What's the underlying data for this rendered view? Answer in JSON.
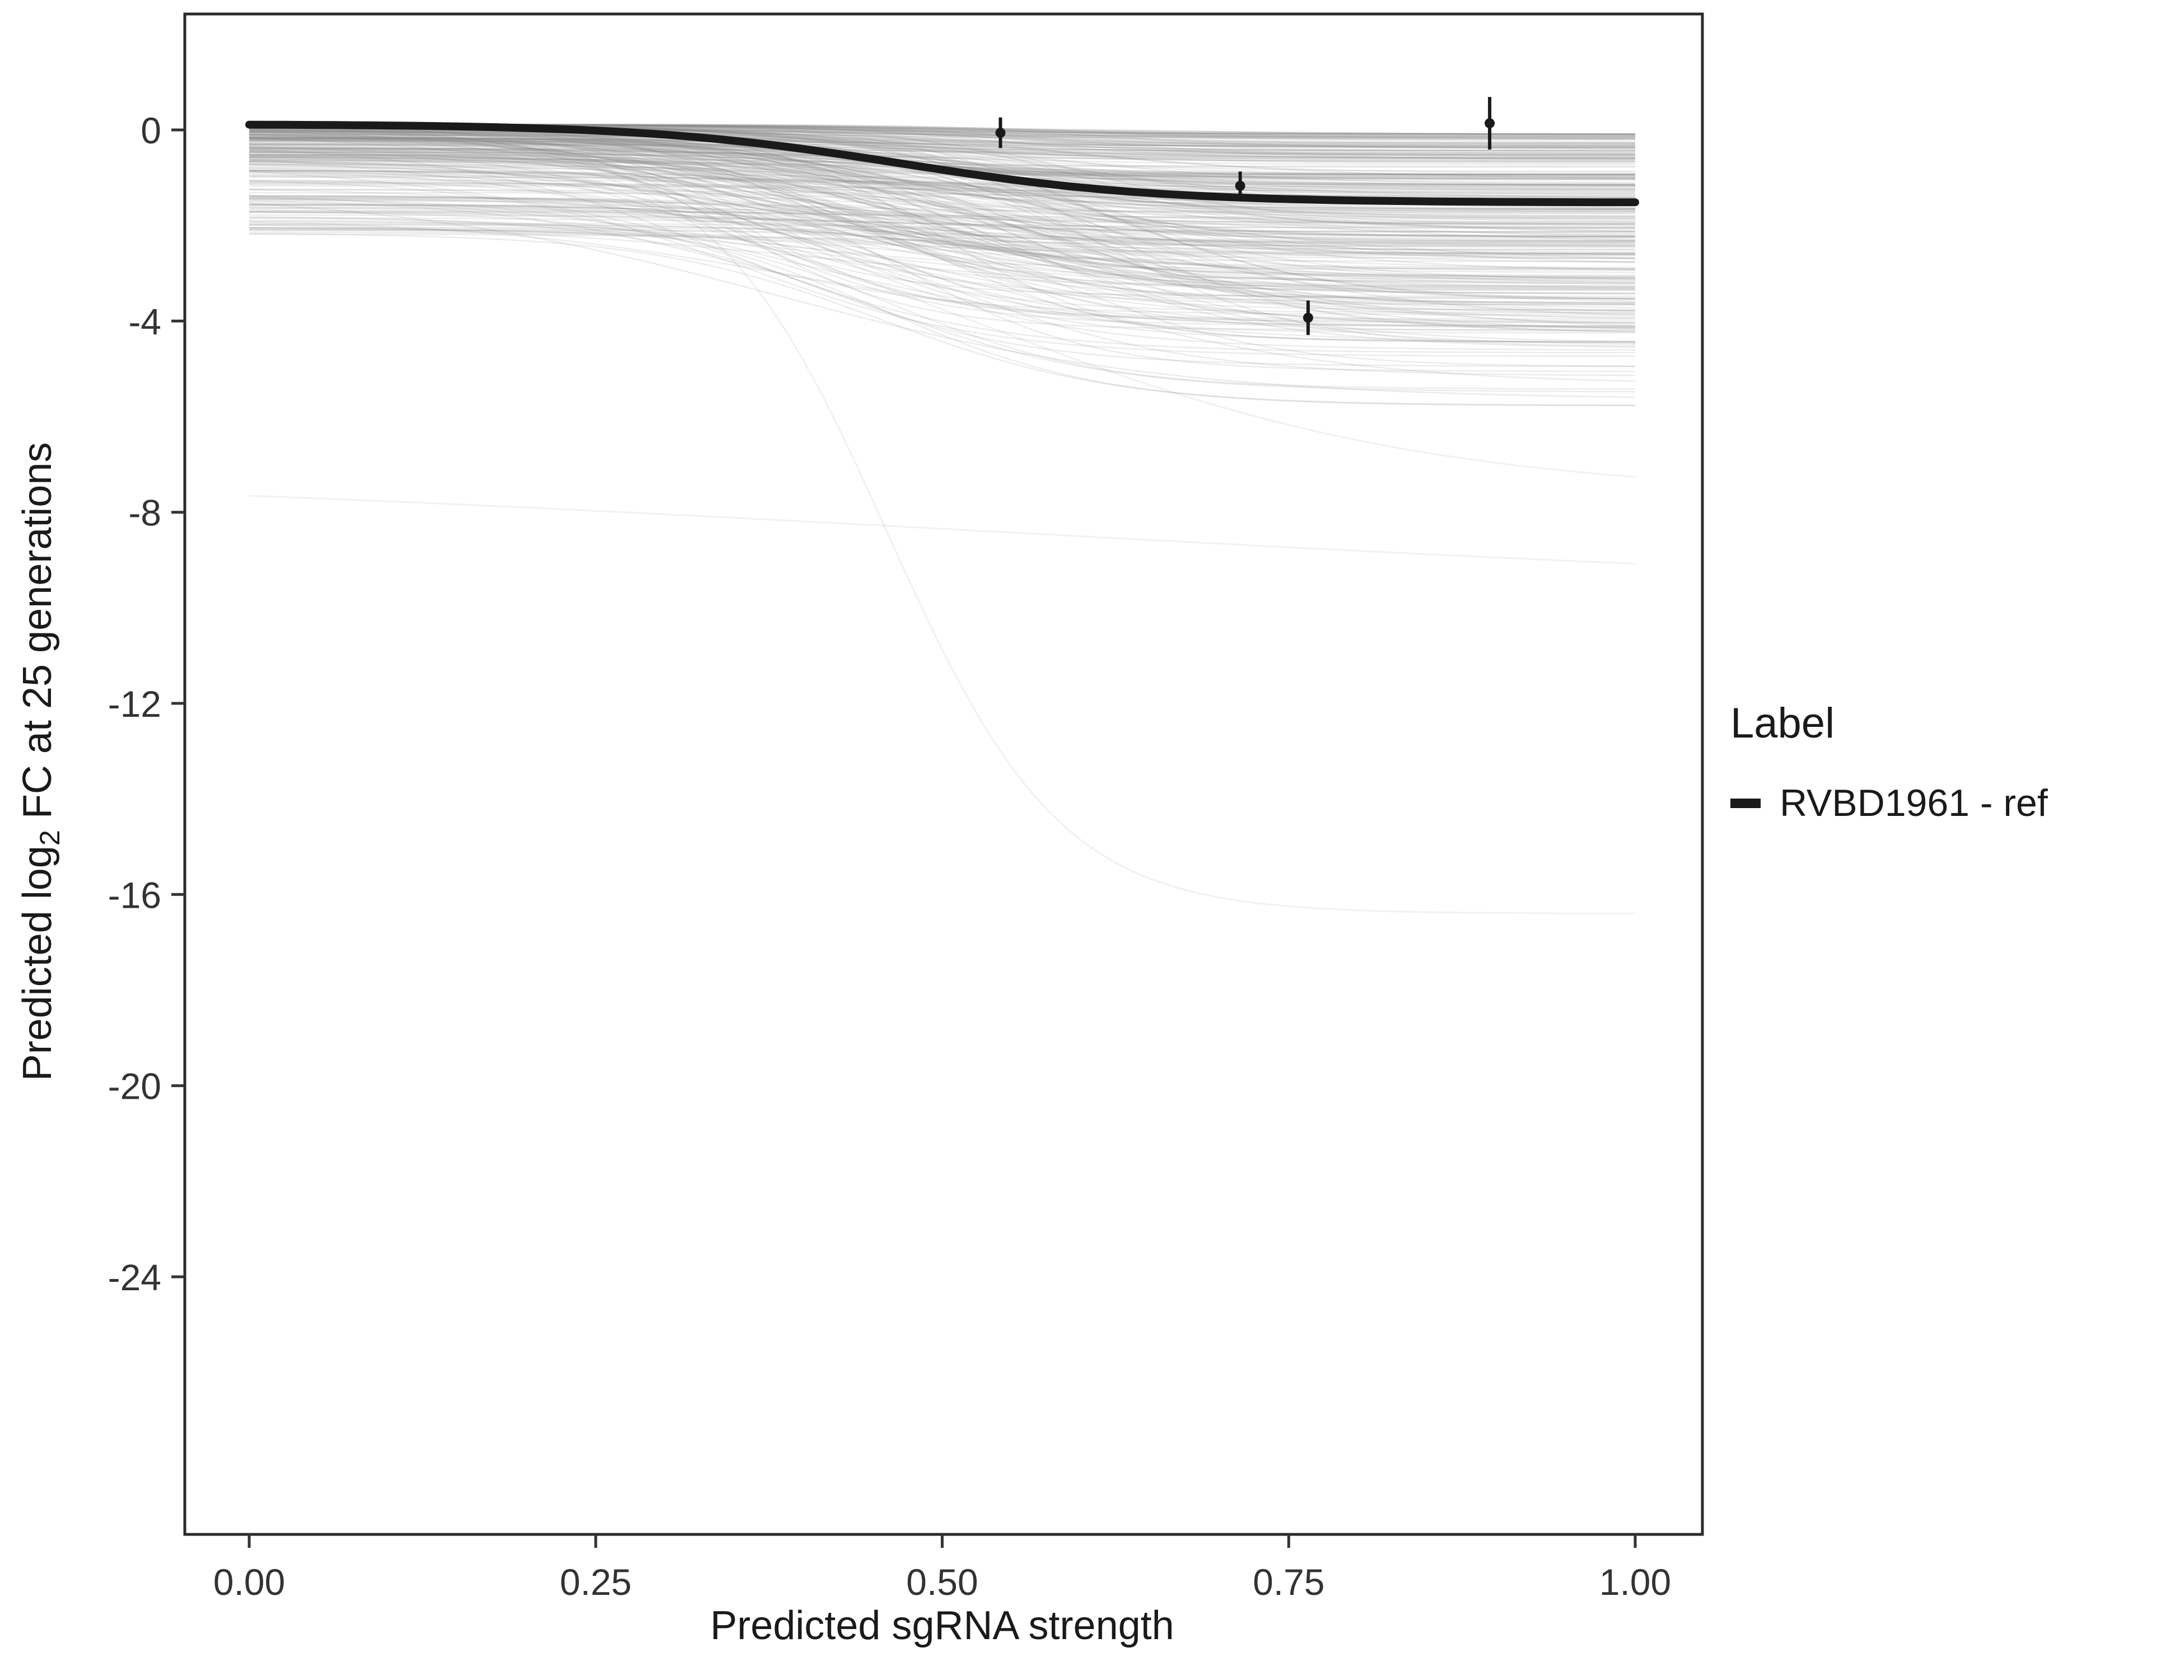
{
  "chart_data": {
    "type": "line",
    "title": "",
    "xlabel": "Predicted sgRNA strength",
    "ylabel_parts": {
      "prefix": "Predicted  log",
      "sub": "2",
      "suffix": " FC at 25 generations"
    },
    "xlim": [
      0,
      1
    ],
    "ylim": [
      -27.5,
      1.5
    ],
    "x_ticks": [
      0,
      0.25,
      0.5,
      0.75,
      1
    ],
    "x_tick_labels": [
      "0.00",
      "0.25",
      "0.50",
      "0.75",
      "1.00"
    ],
    "y_ticks": [
      0,
      -4,
      -8,
      -12,
      -16,
      -20,
      -24
    ],
    "y_tick_labels": [
      "0",
      "-4",
      "-8",
      "-12",
      "-16",
      "-20",
      "-24"
    ],
    "grid": false,
    "panel_border_color": "#2b2b2b",
    "ref_series": {
      "name": "RVBD1961 - ref",
      "color": "#1a1a1a",
      "sigmoid": {
        "y_start": 0.12,
        "y_end": -1.52,
        "midpoint": 0.47,
        "steepness": 11
      }
    },
    "points": [
      {
        "x": 0.542,
        "y": -0.06,
        "err": 0.32
      },
      {
        "x": 0.715,
        "y": -1.17,
        "err": 0.3
      },
      {
        "x": 0.764,
        "y": -3.93,
        "err": 0.36
      },
      {
        "x": 0.895,
        "y": 0.14,
        "err": 0.55
      }
    ],
    "ensemble": {
      "count": 320,
      "seed": 42,
      "color": "#8a8a8a",
      "opacity": 0.16,
      "y_start_range": [
        -2.2,
        0.12
      ],
      "drop_range": [
        0.2,
        4.6
      ],
      "midpoint_range": [
        0.33,
        0.62
      ],
      "steepness_range": [
        7,
        16
      ]
    },
    "outlier_curves": [
      {
        "y_start": -7.0,
        "y_end": -9.85,
        "midpoint": 0.55,
        "steepness": 2.2
      },
      {
        "y_start": -0.4,
        "y_end": -16.4,
        "midpoint": 0.46,
        "steepness": 16
      },
      {
        "y_start": -0.3,
        "y_end": -7.65,
        "midpoint": 0.52,
        "steepness": 6
      }
    ],
    "legend": {
      "title": "Label",
      "entries": [
        {
          "label": "RVBD1961 - ref",
          "color": "#1a1a1a"
        }
      ]
    }
  }
}
